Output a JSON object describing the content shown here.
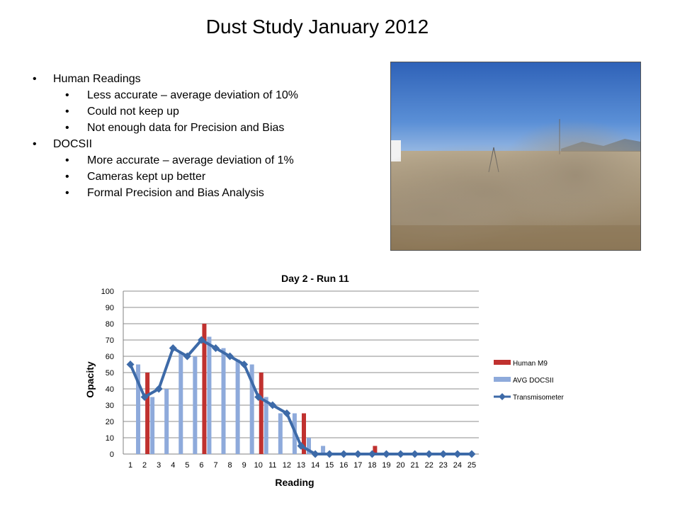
{
  "slide": {
    "title": "Dust Study January 2012",
    "bullets": [
      {
        "text": "Human Readings",
        "children": [
          "Less accurate – average deviation of 10%",
          "Could not keep up",
          "Not enough data for Precision and Bias"
        ]
      },
      {
        "text": "DOCSII",
        "children": [
          "More accurate – average deviation of 1%",
          "Cameras kept up better",
          "Formal Precision and Bias Analysis"
        ]
      }
    ],
    "bullet_glyph": "•"
  },
  "chart_data": {
    "type": "bar",
    "title": "Day 2 - Run 11",
    "xlabel": "Reading",
    "ylabel": "Opacity",
    "ylim": [
      0,
      100
    ],
    "yticks": [
      0,
      10,
      20,
      30,
      40,
      50,
      60,
      70,
      80,
      90,
      100
    ],
    "grid": true,
    "legend_position": "right",
    "categories": [
      "1",
      "2",
      "3",
      "4",
      "5",
      "6",
      "7",
      "8",
      "9",
      "10",
      "11",
      "12",
      "13",
      "14",
      "15",
      "16",
      "17",
      "18",
      "19",
      "20",
      "21",
      "22",
      "23",
      "24",
      "25"
    ],
    "series": [
      {
        "name": "Human M9",
        "kind": "bar",
        "color": "#c0312f",
        "values": [
          0,
          50,
          0,
          0,
          0,
          80,
          0,
          0,
          0,
          50,
          0,
          0,
          25,
          0,
          0,
          0,
          0,
          5,
          0,
          0,
          0,
          0,
          0,
          0,
          0
        ]
      },
      {
        "name": "AVG DOCSII",
        "kind": "bar",
        "color": "#8eaadb",
        "values": [
          55,
          35,
          40,
          62,
          60,
          72,
          65,
          58,
          55,
          35,
          25,
          25,
          10,
          5,
          0,
          0,
          0,
          0,
          0,
          0,
          0,
          0,
          0,
          0,
          0
        ]
      },
      {
        "name": "Transmisometer",
        "kind": "line",
        "color": "#3d6aa8",
        "values": [
          55,
          35,
          40,
          65,
          60,
          70,
          65,
          60,
          55,
          35,
          30,
          25,
          5,
          0,
          0,
          0,
          0,
          0,
          0,
          0,
          0,
          0,
          0,
          0,
          0
        ]
      }
    ]
  }
}
